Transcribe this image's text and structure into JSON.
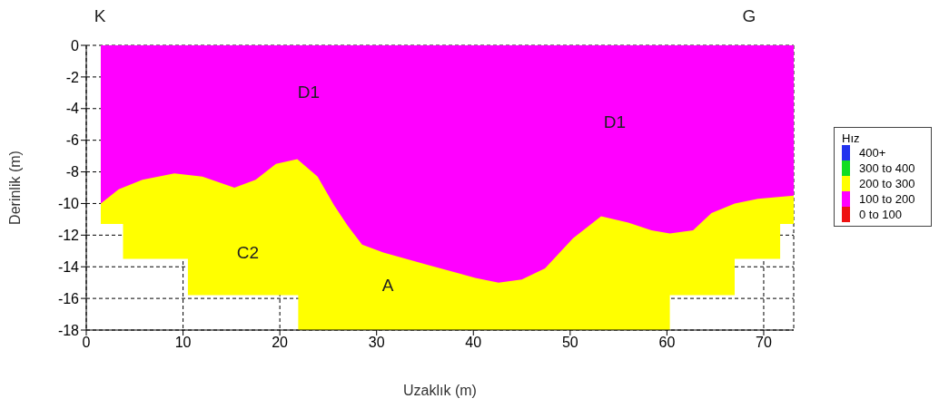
{
  "chart_data": {
    "type": "area",
    "xlabel": "Uzaklık (m)",
    "ylabel": "Derinlik (m)",
    "legend_title": "Hız",
    "xlim": [
      0,
      73.1
    ],
    "xticks": [
      0,
      10,
      20,
      30,
      40,
      50,
      60,
      70
    ],
    "ylim": [
      -18,
      0
    ],
    "yticks": [
      0,
      -2,
      -4,
      -6,
      -8,
      -10,
      -12,
      -14,
      -16,
      -18
    ],
    "grid": true,
    "line_style": "dashed",
    "legend": "right",
    "series": [
      {
        "name": "400+",
        "color": "#2233ee"
      },
      {
        "name": "300 to 400",
        "color": "#11dd22"
      },
      {
        "name": "200 to 300",
        "color": "#ffff00",
        "x": [
          1.5,
          3.8,
          3.8,
          10.5,
          10.5,
          21.9,
          21.9,
          60.3,
          60.3,
          67.0,
          67.0,
          71.7,
          71.7,
          73.1
        ],
        "values": [
          -11.3,
          -11.3,
          -13.5,
          -13.5,
          -15.8,
          -15.8,
          -18,
          -18,
          -15.8,
          -15.8,
          -13.5,
          -13.5,
          -11.3,
          -11.3
        ]
      },
      {
        "name": "100 to 200",
        "color": "#ff00ff",
        "x": [
          1.5,
          3.35,
          5.8,
          9.1,
          12.0,
          15.3,
          17.5,
          19.6,
          21.8,
          23.9,
          25.6,
          27.0,
          28.5,
          30.7,
          35.4,
          40.2,
          42.6,
          45.0,
          47.4,
          50.3,
          53.2,
          56.0,
          58.4,
          60.3,
          62.7,
          64.6,
          67.0,
          69.4,
          73.1
        ],
        "values": [
          -10.0,
          -9.1,
          -8.5,
          -8.1,
          -8.3,
          -9.0,
          -8.5,
          -7.5,
          -7.2,
          -8.3,
          -10.1,
          -11.4,
          -12.6,
          -13.1,
          -13.9,
          -14.7,
          -15.0,
          -14.8,
          -14.1,
          -12.2,
          -10.8,
          -11.2,
          -11.7,
          -11.9,
          -11.7,
          -10.6,
          -10.0,
          -9.7,
          -9.5
        ]
      },
      {
        "name": "0 to 100",
        "color": "#ee1111"
      }
    ],
    "annotations": [
      "K",
      "G",
      "D1",
      "D1",
      "C2",
      "A"
    ]
  }
}
